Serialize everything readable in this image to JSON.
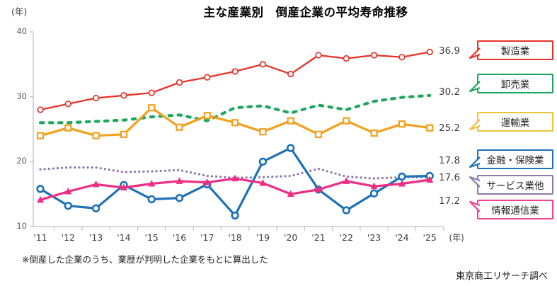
{
  "title": "主な産業別　倒産企業の平均寿命推移",
  "y_axis": {
    "unit": "(年)",
    "ticks": [
      40,
      30,
      20,
      10
    ],
    "min": 10,
    "max": 40
  },
  "x_axis": {
    "unit": "(年)"
  },
  "footnote": "※倒産した企業のうち、業歴が判明した企業をもとに算出した",
  "source": "東京商工リサーチ調べ",
  "chart_data": {
    "type": "line",
    "title": "主な産業別 倒産企業の平均寿命推移",
    "ylabel": "年",
    "ylim": [
      10,
      40
    ],
    "grid": false,
    "legend_position": "right",
    "categories": [
      "'11",
      "'12",
      "'13",
      "'14",
      "'15",
      "'16",
      "'17",
      "'18",
      "'19",
      "'20",
      "'21",
      "'22",
      "'23",
      "'24",
      "'25"
    ],
    "series": [
      {
        "name": "製造業",
        "color": "#e6332a",
        "style": "solid",
        "marker": "circle-open",
        "end_label": "36.9",
        "values": [
          28.0,
          28.9,
          29.8,
          30.2,
          30.6,
          32.2,
          33.0,
          33.9,
          35.0,
          33.5,
          36.4,
          35.9,
          36.4,
          36.1,
          36.9
        ]
      },
      {
        "name": "卸売業",
        "color": "#1fa75d",
        "style": "dashed",
        "marker": "none",
        "end_label": "30.2",
        "values": [
          26.0,
          26.0,
          26.2,
          26.4,
          26.9,
          27.2,
          26.3,
          28.3,
          28.6,
          27.5,
          28.7,
          28.0,
          29.3,
          29.9,
          30.2
        ]
      },
      {
        "name": "運輸業",
        "color": "#f3a01c",
        "style": "solid",
        "marker": "square-open",
        "end_label": "25.2",
        "values": [
          24.0,
          25.2,
          24.0,
          24.2,
          28.3,
          25.3,
          27.1,
          26.0,
          24.6,
          26.3,
          24.2,
          26.3,
          24.4,
          25.8,
          25.2
        ]
      },
      {
        "name": "サービス業他",
        "color": "#8c7aa8",
        "style": "dotted",
        "marker": "none",
        "end_label": "17.6",
        "values": [
          18.8,
          19.1,
          19.1,
          18.4,
          18.5,
          18.7,
          17.8,
          17.5,
          17.6,
          17.8,
          18.9,
          17.7,
          17.4,
          17.6,
          17.6
        ]
      },
      {
        "name": "金融・保険業",
        "color": "#1d71b8",
        "style": "solid",
        "marker": "circle-open",
        "end_label": "17.8",
        "values": [
          15.8,
          13.2,
          12.8,
          16.4,
          14.2,
          14.4,
          16.5,
          11.7,
          20.0,
          22.1,
          15.7,
          12.5,
          15.1,
          17.7,
          17.8
        ]
      },
      {
        "name": "情報通信業",
        "color": "#ee2e85",
        "style": "solid",
        "marker": "triangle-filled",
        "end_label": "17.2",
        "values": [
          14.1,
          15.4,
          16.5,
          16.0,
          16.6,
          17.0,
          16.8,
          17.4,
          16.7,
          15.0,
          15.7,
          17.0,
          16.2,
          16.6,
          17.2
        ]
      }
    ]
  },
  "legend": [
    {
      "label": "製造業",
      "color": "#e6332a",
      "tail": "down"
    },
    {
      "label": "卸売業",
      "color": "#1fa75d",
      "tail": "down"
    },
    {
      "label": "運輸業",
      "color": "#eec23a",
      "tail": "down"
    },
    {
      "label": "金融・保険業",
      "color": "#1d71b8",
      "tail": "down"
    },
    {
      "label": "サービス業他",
      "color": "#8c7aa8",
      "tail": "up"
    },
    {
      "label": "情報通信業",
      "color": "#f4418f",
      "tail": "up"
    }
  ]
}
